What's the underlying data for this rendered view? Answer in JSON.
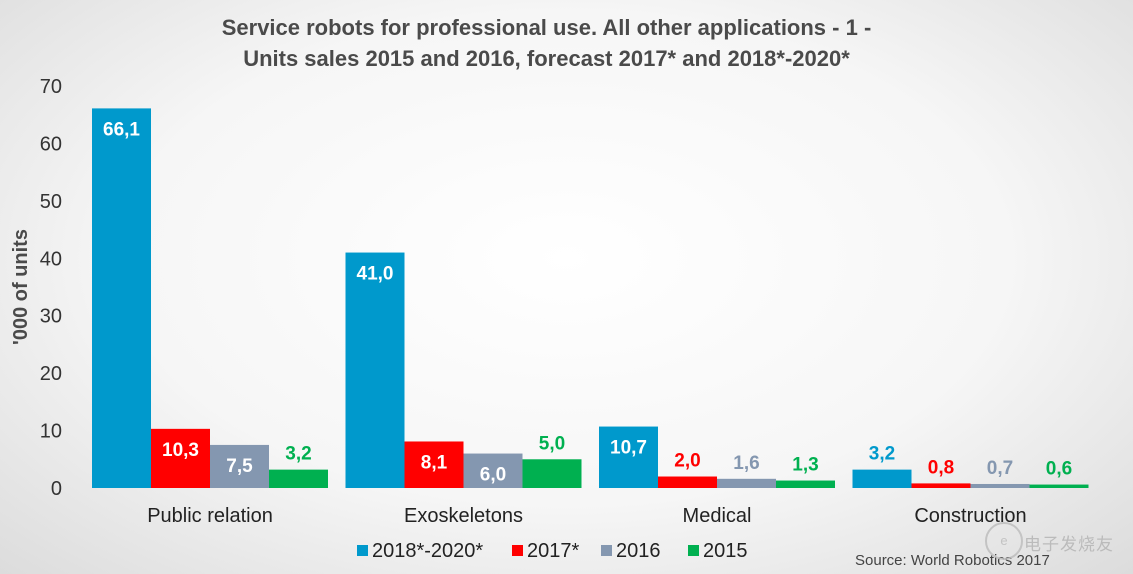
{
  "chart_data": {
    "type": "bar",
    "title_lines": [
      "Service robots for professional use. All other applications - 1 -",
      "Units sales 2015 and 2016, forecast 2017* and 2018*-2020*"
    ],
    "ylabel": "'000 of units",
    "xlabel": "",
    "ylim": [
      0,
      70
    ],
    "yticks": [
      "0",
      "10",
      "20",
      "30",
      "40",
      "50",
      "60",
      "70"
    ],
    "categories": [
      "Public relation",
      "Exoskeletons",
      "Medical",
      "Construction"
    ],
    "series": [
      {
        "name": "2018*-2020*",
        "color": "#0099cc",
        "values": [
          66.1,
          41.0,
          10.7,
          3.2
        ],
        "labels": [
          "66,1",
          "41,0",
          "10,7",
          "3,2"
        ]
      },
      {
        "name": "2017*",
        "color": "#ff0000",
        "values": [
          10.3,
          8.1,
          2.0,
          0.8
        ],
        "labels": [
          "10,3",
          "8,1",
          "2,0",
          "0,8"
        ]
      },
      {
        "name": "2016",
        "color": "#8497b0",
        "values": [
          7.5,
          6.0,
          1.6,
          0.7
        ],
        "labels": [
          "7,5",
          "6,0",
          "1,6",
          "0,7"
        ]
      },
      {
        "name": "2015",
        "color": "#00b050",
        "values": [
          3.2,
          5.0,
          1.3,
          0.6
        ],
        "labels": [
          "3,2",
          "5,0",
          "1,3",
          "0,6"
        ]
      }
    ],
    "grid": false,
    "legend_position": "bottom"
  },
  "source": "Source: World Robotics 2017",
  "watermark": "电子发烧友"
}
